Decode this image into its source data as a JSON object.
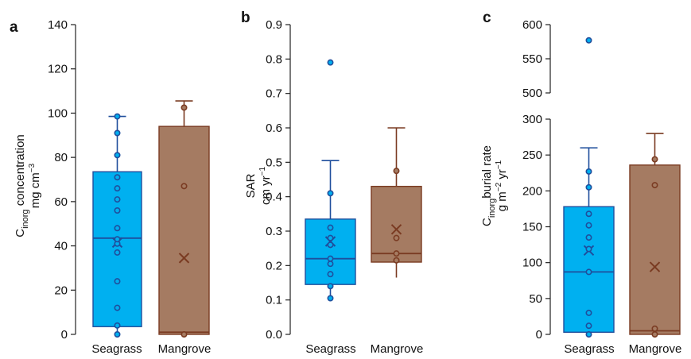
{
  "chart_data": [
    {
      "type": "box",
      "panel_label": "a",
      "ylabel_parts": [
        "C",
        "inorg",
        " concentration"
      ],
      "ylabel_unit_parts": [
        "mg cm",
        "−3"
      ],
      "categories": [
        "Seagrass",
        "Mangrove"
      ],
      "ylim": [
        0,
        140
      ],
      "yticks": [
        0,
        20,
        40,
        60,
        80,
        100,
        120,
        140
      ],
      "series": [
        {
          "category": "Seagrass",
          "color": "#00b0f0",
          "edge": "#1f4e9c",
          "q1": 3.5,
          "median": 43.5,
          "q3": 73.5,
          "mean": 41.5,
          "whisker_low": 0,
          "whisker_high": 98.5,
          "points": [
            0,
            4,
            12,
            24,
            37,
            41,
            43,
            48,
            56,
            61,
            66,
            71,
            81,
            91,
            98.5
          ]
        },
        {
          "category": "Mangrove",
          "color": "#a57b62",
          "edge": "#7a3b22",
          "q1": 0,
          "median": 1,
          "q3": 94,
          "mean": 34.5,
          "whisker_low": 0,
          "whisker_high": 105.5,
          "points": [
            0,
            67,
            102.5
          ]
        }
      ]
    },
    {
      "type": "box",
      "panel_label": "b",
      "ylabel_parts": [
        "SAR"
      ],
      "ylabel_unit_parts": [
        "cm yr",
        "−1"
      ],
      "categories": [
        "Seagrass",
        "Mangrove"
      ],
      "ylim": [
        0,
        0.9
      ],
      "yticks": [
        0.0,
        0.1,
        0.2,
        0.3,
        0.4,
        0.5,
        0.6,
        0.7,
        0.8,
        0.9
      ],
      "ytick_labels": [
        "0.0",
        "0.1",
        "0.2",
        "0.3",
        "0.4",
        "0.5",
        "0.6",
        "0.7",
        "0.8",
        "0.9"
      ],
      "series": [
        {
          "category": "Seagrass",
          "color": "#00b0f0",
          "edge": "#1f4e9c",
          "q1": 0.145,
          "median": 0.22,
          "q3": 0.335,
          "mean": 0.27,
          "whisker_low": 0.105,
          "whisker_high": 0.505,
          "points": [
            0.105,
            0.14,
            0.175,
            0.205,
            0.22,
            0.26,
            0.28,
            0.31,
            0.41,
            0.79
          ]
        },
        {
          "category": "Mangrove",
          "color": "#a57b62",
          "edge": "#7a3b22",
          "q1": 0.21,
          "median": 0.235,
          "q3": 0.43,
          "mean": 0.305,
          "whisker_low": 0.165,
          "whisker_high": 0.6,
          "points": [
            0.215,
            0.235,
            0.28,
            0.475
          ]
        }
      ]
    },
    {
      "type": "box",
      "panel_label": "c",
      "ylabel_parts": [
        "C",
        "inorg",
        "burial rate"
      ],
      "ylabel_unit_parts": [
        "g m",
        "−2",
        " yr",
        "−1"
      ],
      "categories": [
        "Seagrass",
        "Mangrove"
      ],
      "ylim": [
        0,
        600
      ],
      "axis_break": [
        300,
        500
      ],
      "yticks": [
        0,
        50,
        100,
        150,
        200,
        250,
        300,
        500,
        550,
        600
      ],
      "series": [
        {
          "category": "Seagrass",
          "color": "#00b0f0",
          "edge": "#1f4e9c",
          "q1": 3,
          "median": 87,
          "q3": 178,
          "mean": 117,
          "whisker_low": 0,
          "whisker_high": 260,
          "points": [
            0,
            12,
            30,
            87,
            119,
            135,
            152,
            168,
            205,
            227,
            577
          ]
        },
        {
          "category": "Mangrove",
          "color": "#a57b62",
          "edge": "#7a3b22",
          "q1": 0,
          "median": 5,
          "q3": 236,
          "mean": 94,
          "whisker_low": 0,
          "whisker_high": 280,
          "points": [
            0,
            8,
            208,
            244
          ]
        }
      ]
    }
  ]
}
